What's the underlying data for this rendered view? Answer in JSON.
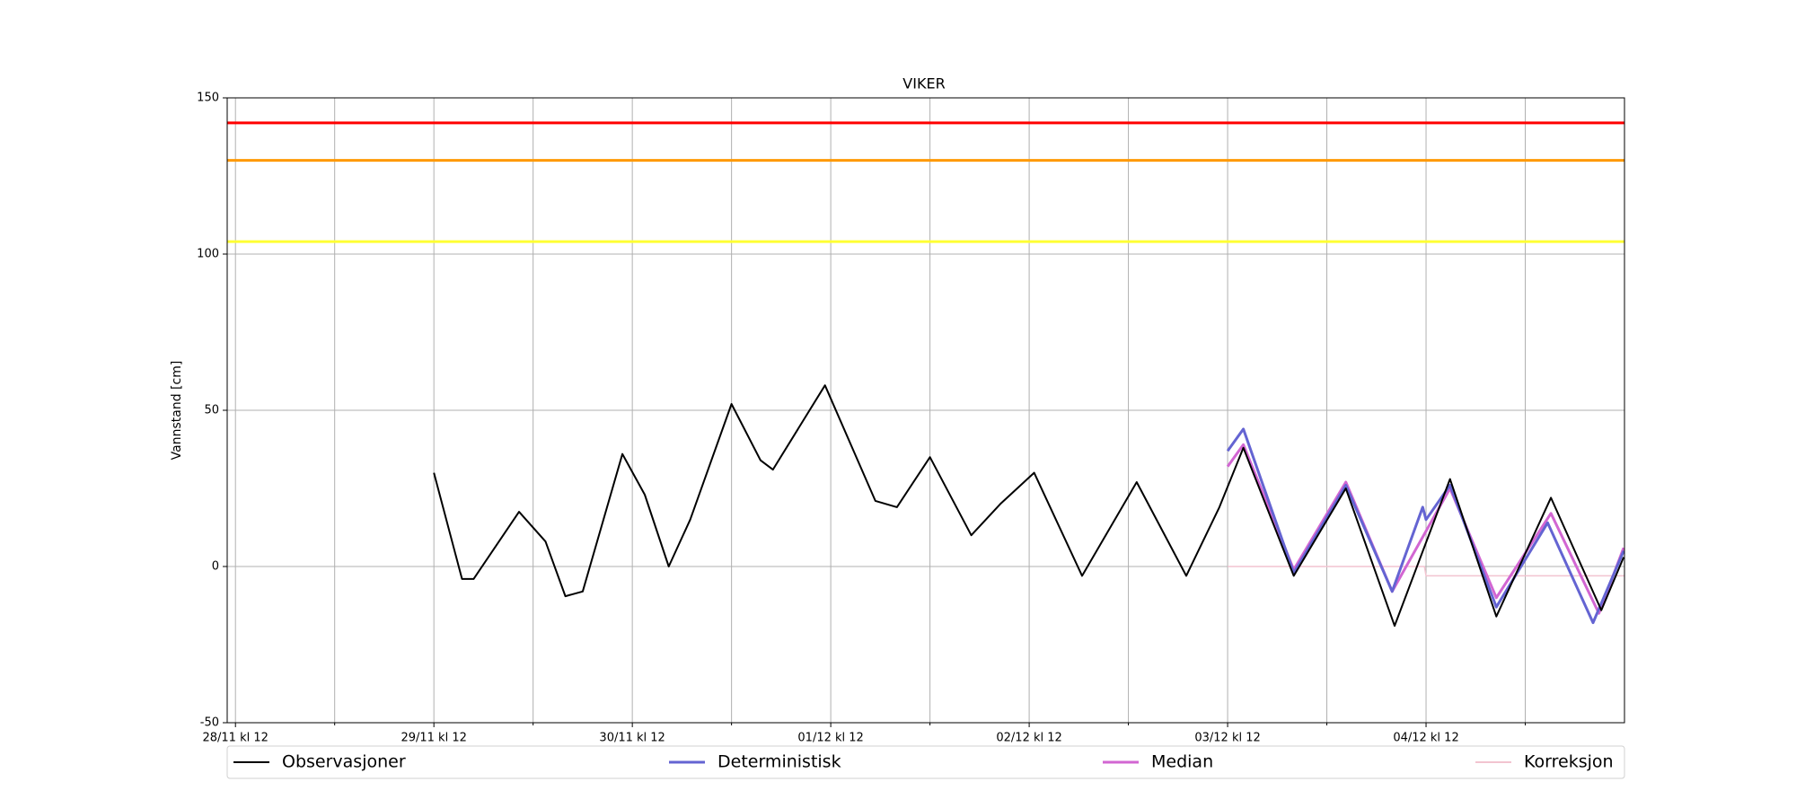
{
  "chart_data": {
    "type": "line",
    "title": "VIKER",
    "y_label": "Vannstand [cm]",
    "xlim": [
      11,
      180
    ],
    "ylim": [
      -50,
      150
    ],
    "yticks": [
      -50,
      0,
      50,
      100,
      150
    ],
    "xticks": [
      {
        "value": 12,
        "label": "28/11 kl 12"
      },
      {
        "value": 36,
        "label": "29/11 kl 12"
      },
      {
        "value": 60,
        "label": "30/11 kl 12"
      },
      {
        "value": 84,
        "label": "01/12 kl 12"
      },
      {
        "value": 108,
        "label": "02/12 kl 12"
      },
      {
        "value": 132,
        "label": "03/12 kl 12"
      },
      {
        "value": 156,
        "label": "04/12 kl 12"
      }
    ],
    "xminorticks": [
      24,
      48,
      72,
      96,
      120,
      144,
      168
    ],
    "grid": true,
    "thresholds": [
      {
        "value": 142,
        "color": "#ff0000"
      },
      {
        "value": 130,
        "color": "#ff9900"
      },
      {
        "value": 104,
        "color": "#ffff33"
      }
    ],
    "series": [
      {
        "name": "Observasjoner",
        "color": "#000000",
        "width": 2,
        "x": [
          36,
          39.4,
          40.8,
          46.3,
          49.5,
          51.9,
          54,
          58.8,
          61.5,
          64.4,
          67,
          72,
          75.5,
          77,
          83.3,
          89.4,
          92,
          96,
          101,
          104.5,
          108.6,
          114.4,
          121,
          127,
          131,
          133.9,
          140,
          146.3,
          152.2,
          158.9,
          164.5,
          171.1,
          177.2,
          179.9
        ],
        "values": [
          30,
          -4,
          -4,
          17.5,
          8,
          -9.5,
          -8,
          36,
          23,
          0,
          15,
          52,
          34,
          31,
          58,
          21,
          19,
          35,
          10,
          20,
          30,
          -3,
          27,
          -3,
          19,
          38,
          -3,
          25,
          -19,
          28,
          -16,
          22,
          -14,
          3
        ]
      },
      {
        "name": "Deterministisk",
        "color": "#6464d2",
        "width": 3,
        "x": [
          132,
          133.9,
          140,
          146.3,
          151.9,
          155.6,
          156,
          158.9,
          164.5,
          170.7,
          176.2,
          179.9
        ],
        "values": [
          37,
          44,
          -2,
          26,
          -8,
          19,
          15,
          26,
          -13,
          14,
          -18,
          5
        ]
      },
      {
        "name": "Median",
        "color": "#d266d2",
        "width": 3,
        "x": [
          132,
          133.9,
          140,
          146.3,
          151.9,
          158.9,
          164.5,
          171.1,
          176.9,
          179.9
        ],
        "values": [
          32,
          39,
          -1,
          27,
          -8,
          25,
          -10,
          17,
          -15,
          6
        ]
      },
      {
        "name": "Korreksjon",
        "color": "#f2c4d0",
        "width": 1.5,
        "x": [
          132,
          155.8,
          156,
          180
        ],
        "values": [
          0,
          0,
          -3,
          -3
        ]
      }
    ]
  }
}
